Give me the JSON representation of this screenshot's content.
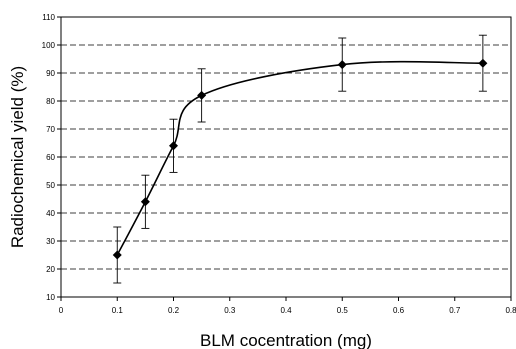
{
  "chart_data": {
    "type": "scatter",
    "title": "",
    "xlabel": "BLM  cocentration (mg)",
    "ylabel": "Radiochemical  yield (%)",
    "xlim": [
      0,
      0.8
    ],
    "ylim": [
      10,
      110
    ],
    "x_ticks": [
      "0",
      "0.1",
      "0.2",
      "0.3",
      "0.4",
      "0.5",
      "0.6",
      "0.7",
      "0.8"
    ],
    "y_ticks": [
      "10",
      "20",
      "30",
      "40",
      "50",
      "60",
      "70",
      "80",
      "90",
      "100",
      "110"
    ],
    "grid": "horizontal dashed",
    "legend": "none",
    "series": [
      {
        "x": [
          0.1,
          0.15,
          0.2,
          0.25,
          0.5,
          0.75
        ],
        "y": [
          25,
          44,
          64,
          82,
          93,
          93.5
        ],
        "error": [
          10,
          9.5,
          9.5,
          9.5,
          9.5,
          10
        ],
        "smoothed": true,
        "marker": "diamond",
        "color": "#000000"
      }
    ]
  }
}
